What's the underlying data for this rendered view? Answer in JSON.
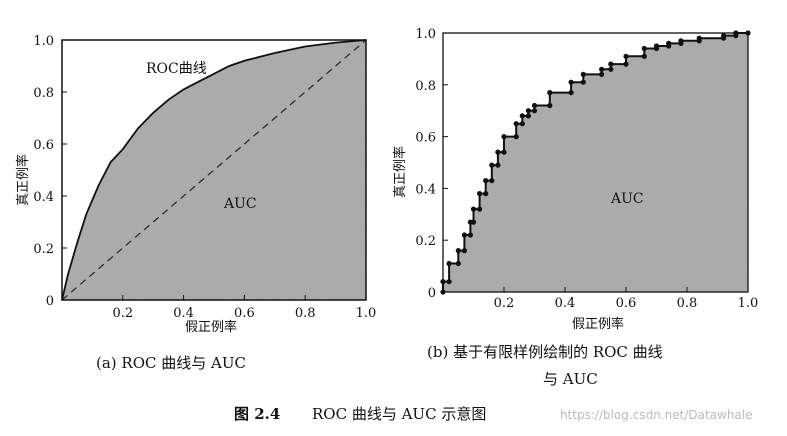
{
  "chart_data": [
    {
      "type": "area",
      "panel_caption": "(a) ROC 曲线与 AUC",
      "xlabel": "假正例率",
      "ylabel": "真正例率",
      "xlim": [
        0,
        1
      ],
      "ylim": [
        0,
        1
      ],
      "xticks": [
        "0.2",
        "0.4",
        "0.6",
        "0.8",
        "1.0"
      ],
      "yticks": [
        "0",
        "0.2",
        "0.4",
        "0.6",
        "0.8",
        "1.0"
      ],
      "annotations": {
        "curve": "ROC曲线",
        "area": "AUC"
      },
      "curve_series": {
        "x": [
          0,
          0.02,
          0.05,
          0.08,
          0.12,
          0.16,
          0.2,
          0.25,
          0.3,
          0.35,
          0.4,
          0.45,
          0.5,
          0.55,
          0.6,
          0.7,
          0.8,
          0.9,
          1.0
        ],
        "y": [
          0,
          0.1,
          0.22,
          0.33,
          0.44,
          0.53,
          0.58,
          0.66,
          0.72,
          0.77,
          0.81,
          0.84,
          0.87,
          0.9,
          0.92,
          0.95,
          0.975,
          0.99,
          1.0
        ]
      },
      "diagonal": {
        "x": [
          0,
          1
        ],
        "y": [
          0,
          1
        ],
        "style": "dashed"
      },
      "fill": "gray speckled area under curve"
    },
    {
      "type": "area",
      "panel_caption": [
        "(b) 基于有限样例绘制的 ROC 曲线",
        "与 AUC"
      ],
      "xlabel": "假正例率",
      "ylabel": "真正例率",
      "xlim": [
        0,
        1
      ],
      "ylim": [
        0,
        1
      ],
      "xticks": [
        "0",
        "0.2",
        "0.4",
        "0.6",
        "0.8",
        "1.0"
      ],
      "yticks": [
        "0",
        "0.2",
        "0.4",
        "0.6",
        "0.8",
        "1.0"
      ],
      "annotations": {
        "area": "AUC"
      },
      "step_points": {
        "x": [
          0,
          0,
          0.02,
          0.02,
          0.05,
          0.05,
          0.07,
          0.07,
          0.09,
          0.09,
          0.1,
          0.1,
          0.12,
          0.12,
          0.14,
          0.14,
          0.16,
          0.16,
          0.18,
          0.18,
          0.2,
          0.2,
          0.24,
          0.24,
          0.26,
          0.26,
          0.28,
          0.28,
          0.3,
          0.3,
          0.35,
          0.35,
          0.42,
          0.42,
          0.46,
          0.46,
          0.52,
          0.52,
          0.55,
          0.55,
          0.6,
          0.6,
          0.66,
          0.66,
          0.7,
          0.7,
          0.74,
          0.74,
          0.78,
          0.78,
          0.84,
          0.84,
          0.92,
          0.92,
          0.96,
          0.96,
          1.0
        ],
        "y": [
          0,
          0.04,
          0.04,
          0.11,
          0.11,
          0.16,
          0.16,
          0.22,
          0.22,
          0.27,
          0.27,
          0.32,
          0.32,
          0.38,
          0.38,
          0.43,
          0.43,
          0.49,
          0.49,
          0.54,
          0.54,
          0.6,
          0.6,
          0.65,
          0.65,
          0.68,
          0.68,
          0.7,
          0.7,
          0.72,
          0.72,
          0.77,
          0.77,
          0.81,
          0.81,
          0.84,
          0.84,
          0.86,
          0.86,
          0.88,
          0.88,
          0.91,
          0.91,
          0.94,
          0.94,
          0.95,
          0.95,
          0.96,
          0.96,
          0.97,
          0.97,
          0.98,
          0.98,
          0.99,
          0.99,
          1.0,
          1.0
        ]
      },
      "fill": "gray speckled area under curve"
    }
  ],
  "figure_caption": {
    "number": "图 2.4",
    "text": "ROC 曲线与 AUC 示意图"
  },
  "watermark": "https://blog.csdn.net/Datawhale"
}
